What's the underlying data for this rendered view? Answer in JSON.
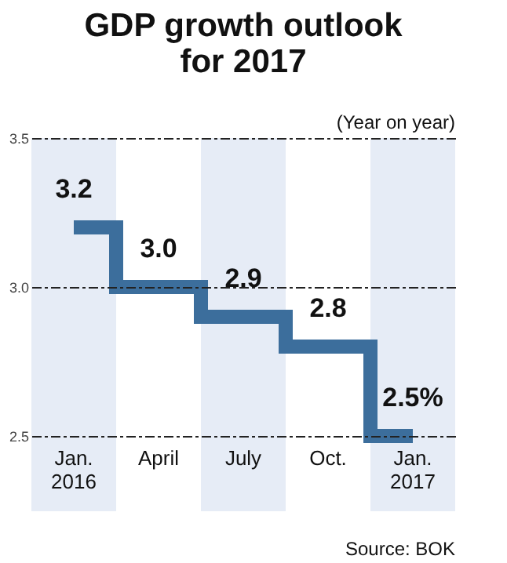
{
  "chart_data": {
    "type": "step",
    "title": "GDP growth outlook\nfor 2017",
    "categories": [
      "Jan.\n2016",
      "April",
      "July",
      "Oct.",
      "Jan.\n2017"
    ],
    "series": [
      {
        "color": "#3c6e9c",
        "values": [
          3.2,
          3.0,
          2.9,
          2.8,
          2.5
        ],
        "value_labels": [
          "3.2",
          "3.0",
          "2.9",
          "2.8",
          "2.5%"
        ]
      }
    ],
    "ylim": [
      2.5,
      3.5
    ],
    "yticks": [
      {
        "value": 2.5,
        "label": "2.5"
      },
      {
        "value": 3,
        "label": "3.0"
      },
      {
        "value": 3.5,
        "label": "3.5"
      }
    ],
    "grid": "y",
    "line_style": "solid",
    "marker": "none",
    "bands": [
      {
        "axis": "x",
        "from": "Jan.\n2016",
        "to": "Jan.\n2016",
        "color": "#e6ecf6"
      },
      {
        "axis": "x",
        "from": "July",
        "to": "July",
        "color": "#e6ecf6"
      },
      {
        "axis": "x",
        "from": "Jan.\n2017",
        "to": "Jan.\n2017",
        "color": "#e6ecf6"
      }
    ],
    "annotations": [
      "(Year on year)",
      "Source: BOK"
    ]
  }
}
